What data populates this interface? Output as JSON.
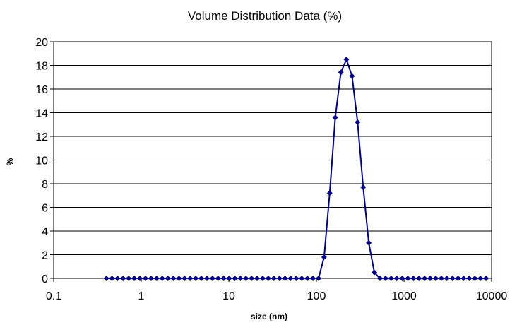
{
  "chart_data": {
    "type": "scatter",
    "title": "Volume Distribution Data (%)",
    "xlabel": "size (nm)",
    "ylabel": "%",
    "x_scale": "log",
    "xlim": [
      0.1,
      10000
    ],
    "ylim": [
      0,
      20
    ],
    "x_ticks": [
      "0.1",
      "1",
      "10",
      "100",
      "1000",
      "10000"
    ],
    "y_ticks": [
      "0",
      "2",
      "4",
      "6",
      "8",
      "10",
      "12",
      "14",
      "16",
      "18",
      "20"
    ],
    "grid": "horizontal",
    "legend": "none",
    "series": [
      {
        "color": "#000080",
        "marker": "diamond",
        "line": true,
        "x": [
          0.4,
          0.463,
          0.536,
          0.621,
          0.719,
          0.833,
          0.965,
          1.117,
          1.294,
          1.499,
          1.736,
          2.01,
          2.328,
          2.696,
          3.122,
          3.616,
          4.188,
          4.85,
          5.617,
          6.505,
          7.534,
          8.725,
          10.1,
          11.7,
          13.55,
          15.69,
          18.17,
          21.04,
          24.36,
          28.21,
          32.67,
          37.84,
          43.82,
          50.75,
          58.77,
          68.06,
          78.82,
          91.28,
          105.7,
          122.4,
          141.8,
          164.2,
          190.1,
          220.2,
          255.0,
          295.3,
          342.0,
          396.1,
          458.7,
          531.2,
          615.1,
          712.4,
          825.0,
          955.4,
          1106,
          1281,
          1484,
          1718,
          1990,
          2305,
          2669,
          3091,
          3580,
          4145,
          4801,
          5560,
          6439,
          7456,
          8635
        ],
        "y": [
          0,
          0,
          0,
          0,
          0,
          0,
          0,
          0,
          0,
          0,
          0,
          0,
          0,
          0,
          0,
          0,
          0,
          0,
          0,
          0,
          0,
          0,
          0,
          0,
          0,
          0,
          0,
          0,
          0,
          0,
          0,
          0,
          0,
          0,
          0,
          0,
          0,
          0,
          0,
          1.8,
          7.2,
          13.6,
          17.4,
          18.5,
          17.1,
          13.2,
          7.7,
          3.0,
          0.5,
          0,
          0,
          0,
          0,
          0,
          0,
          0,
          0,
          0,
          0,
          0,
          0,
          0,
          0,
          0,
          0,
          0,
          0,
          0,
          0
        ]
      }
    ]
  }
}
